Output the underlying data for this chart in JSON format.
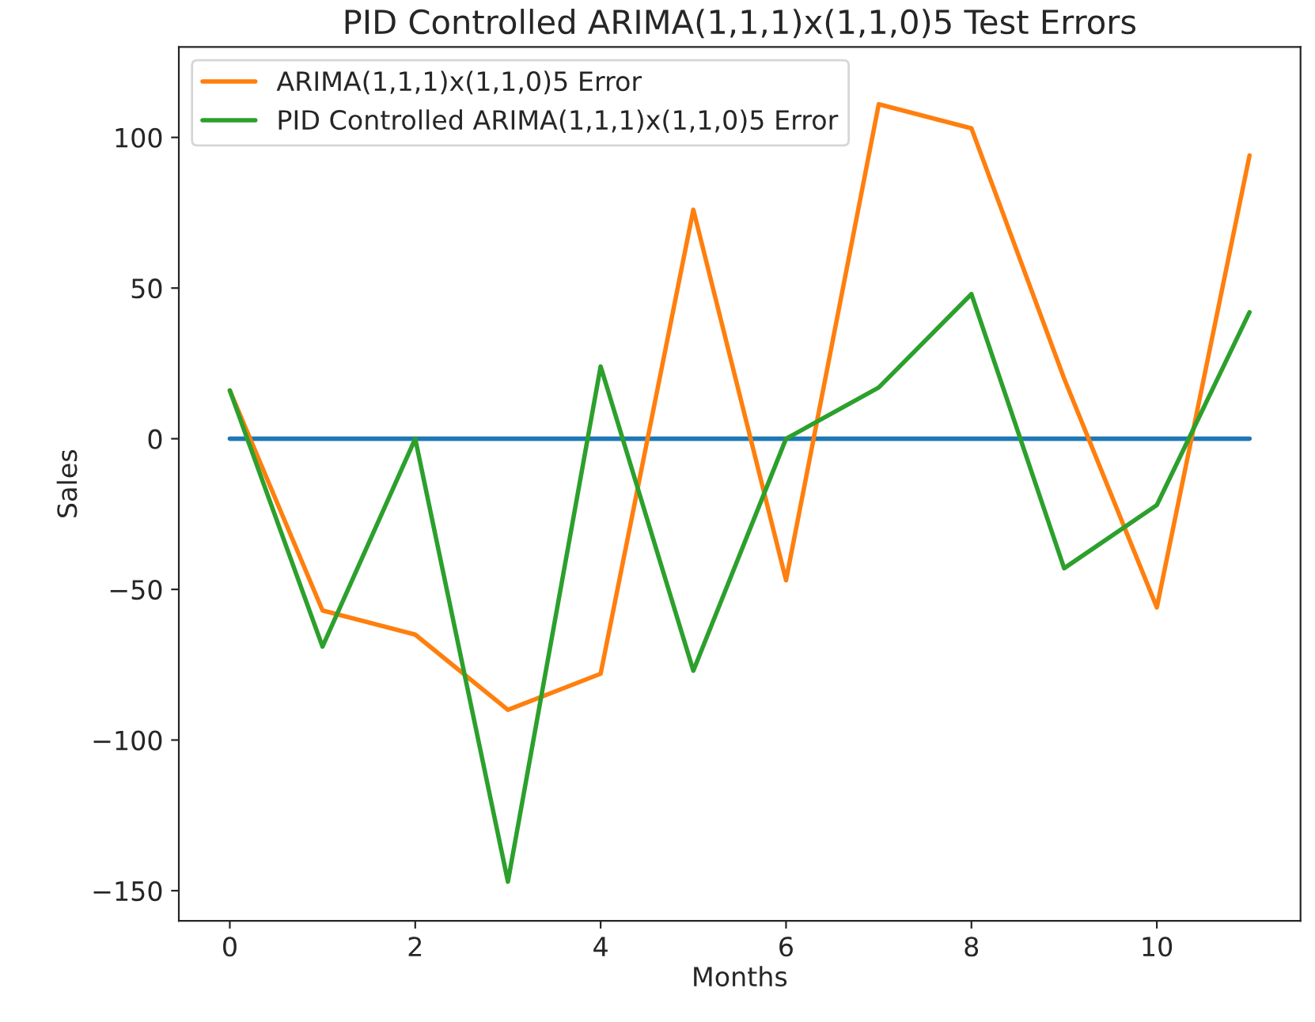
{
  "chart_data": {
    "type": "line",
    "title": "PID Controlled ARIMA(1,1,1)x(1,1,0)5 Test Errors",
    "xlabel": "Months",
    "ylabel": "Sales",
    "x": [
      0,
      1,
      2,
      3,
      4,
      5,
      6,
      7,
      8,
      9,
      10,
      11
    ],
    "series": [
      {
        "color": "#1f77b4",
        "values": [
          0,
          0,
          0,
          0,
          0,
          0,
          0,
          0,
          0,
          0,
          0,
          0
        ]
      },
      {
        "name": "ARIMA(1,1,1)x(1,1,0)5 Error",
        "color": "#ff7f0e",
        "values": [
          16,
          -57,
          -65,
          -90,
          -78,
          76,
          -47,
          111,
          103,
          20,
          -56,
          94
        ]
      },
      {
        "name": "PID Controlled ARIMA(1,1,1)x(1,1,0)5 Error",
        "color": "#2ca02c",
        "values": [
          16,
          -69,
          0,
          -147,
          24,
          -77,
          0,
          17,
          48,
          -43,
          -22,
          42
        ]
      }
    ],
    "xlim": [
      -0.55,
      11.55
    ],
    "ylim": [
      -160,
      130
    ],
    "xticks": [
      0,
      2,
      4,
      6,
      8,
      10
    ],
    "yticks": [
      -150,
      -100,
      -50,
      0,
      50,
      100
    ],
    "grid": false,
    "legend": "top left"
  }
}
